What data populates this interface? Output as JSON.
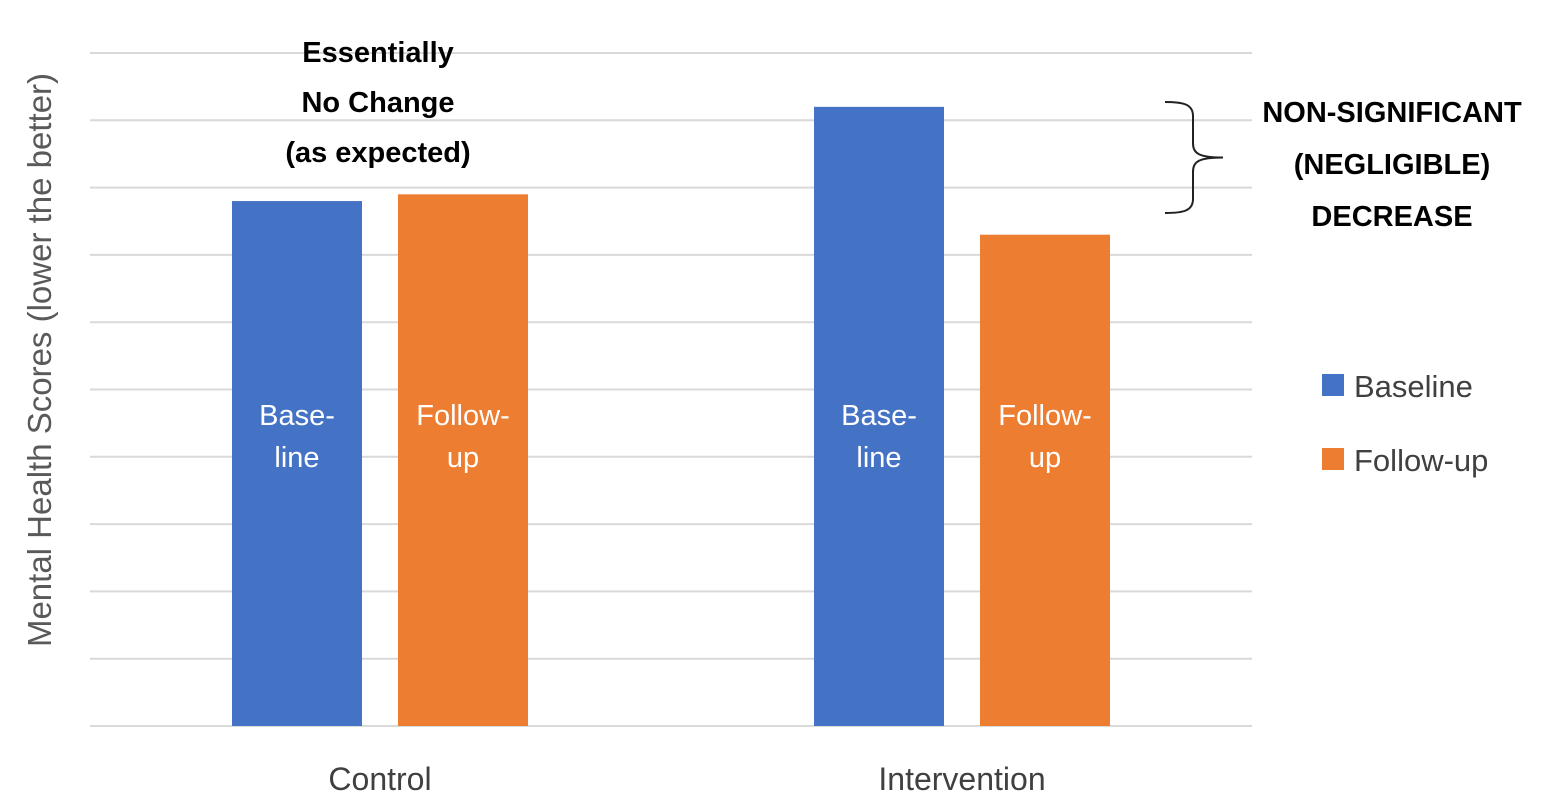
{
  "chart_data": {
    "type": "bar",
    "title": "",
    "xlabel": "",
    "ylabel": "Mental Health Scores (lower the better)",
    "ylim": [
      0,
      10
    ],
    "grid": true,
    "legend_position": "right",
    "categories": [
      "Control",
      "Intervention"
    ],
    "series": [
      {
        "name": "Baseline",
        "color": "#4472C4",
        "values": [
          7.8,
          9.2
        ],
        "bar_label": [
          "Base-",
          "line"
        ]
      },
      {
        "name": "Follow-up",
        "color": "#ED7D31",
        "values": [
          7.9,
          7.3
        ],
        "bar_label": [
          "Follow-",
          "up"
        ]
      }
    ],
    "annotations": {
      "control": [
        "Essentially",
        "No Change",
        "(as expected)"
      ],
      "intervention": [
        "NON-SIGNIFICANT",
        "(NEGLIGIBLE)",
        "DECREASE"
      ]
    },
    "colors": {
      "grid": "#d9d9d9",
      "axis_text": "#404040",
      "ylabel_text": "#595959",
      "annotation_text": "#000000",
      "bar_text": "#ffffff"
    }
  }
}
